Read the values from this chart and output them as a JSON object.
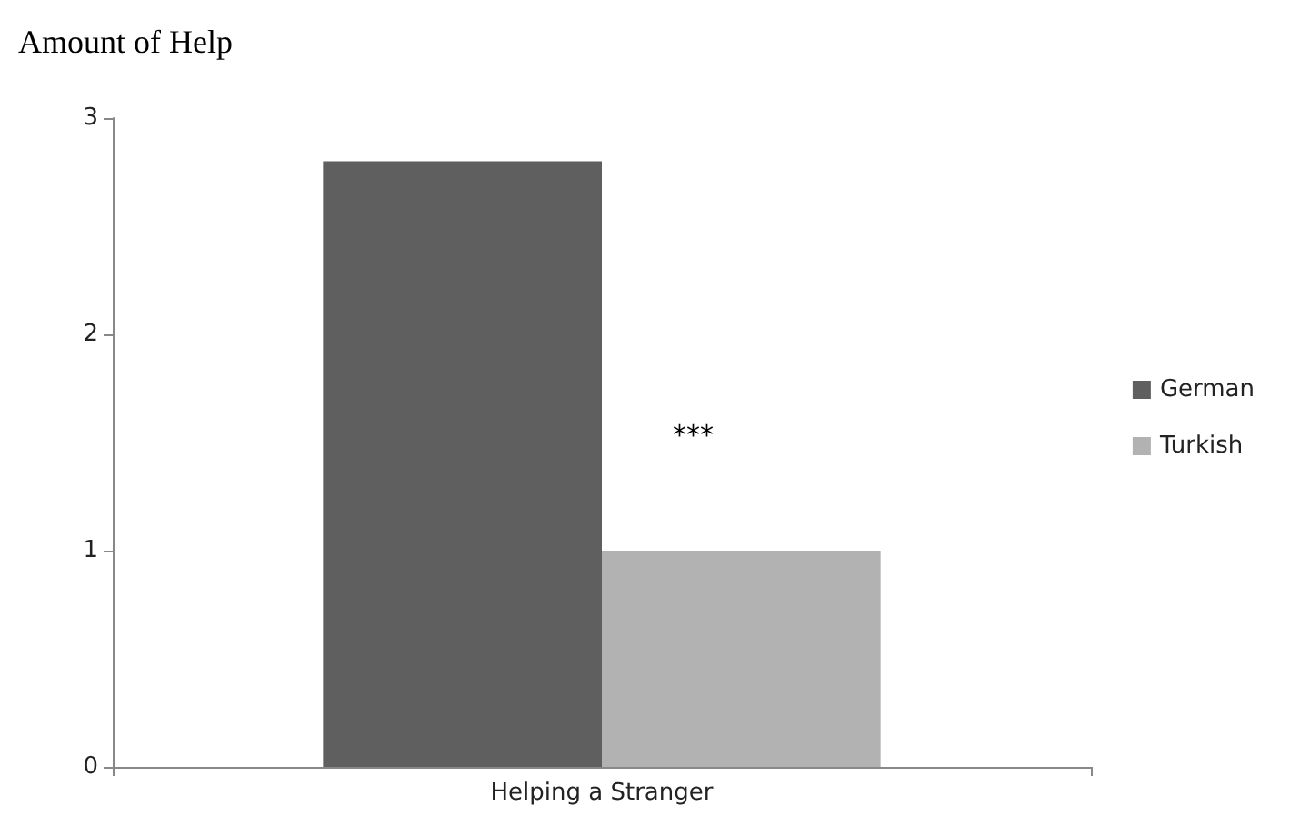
{
  "chart_data": {
    "type": "bar",
    "ylabel": "Amount of Help",
    "categories": [
      "Helping a Stranger"
    ],
    "series": [
      {
        "name": "German",
        "color": "#5f5f5f",
        "values": [
          2.8
        ]
      },
      {
        "name": "Turkish",
        "color": "#b2b2b2",
        "values": [
          1.0
        ]
      }
    ],
    "ylim": [
      0,
      3
    ],
    "yticks": [
      0,
      1,
      2,
      3
    ],
    "grid": false,
    "legend": "right",
    "annotations": [
      "***"
    ]
  }
}
